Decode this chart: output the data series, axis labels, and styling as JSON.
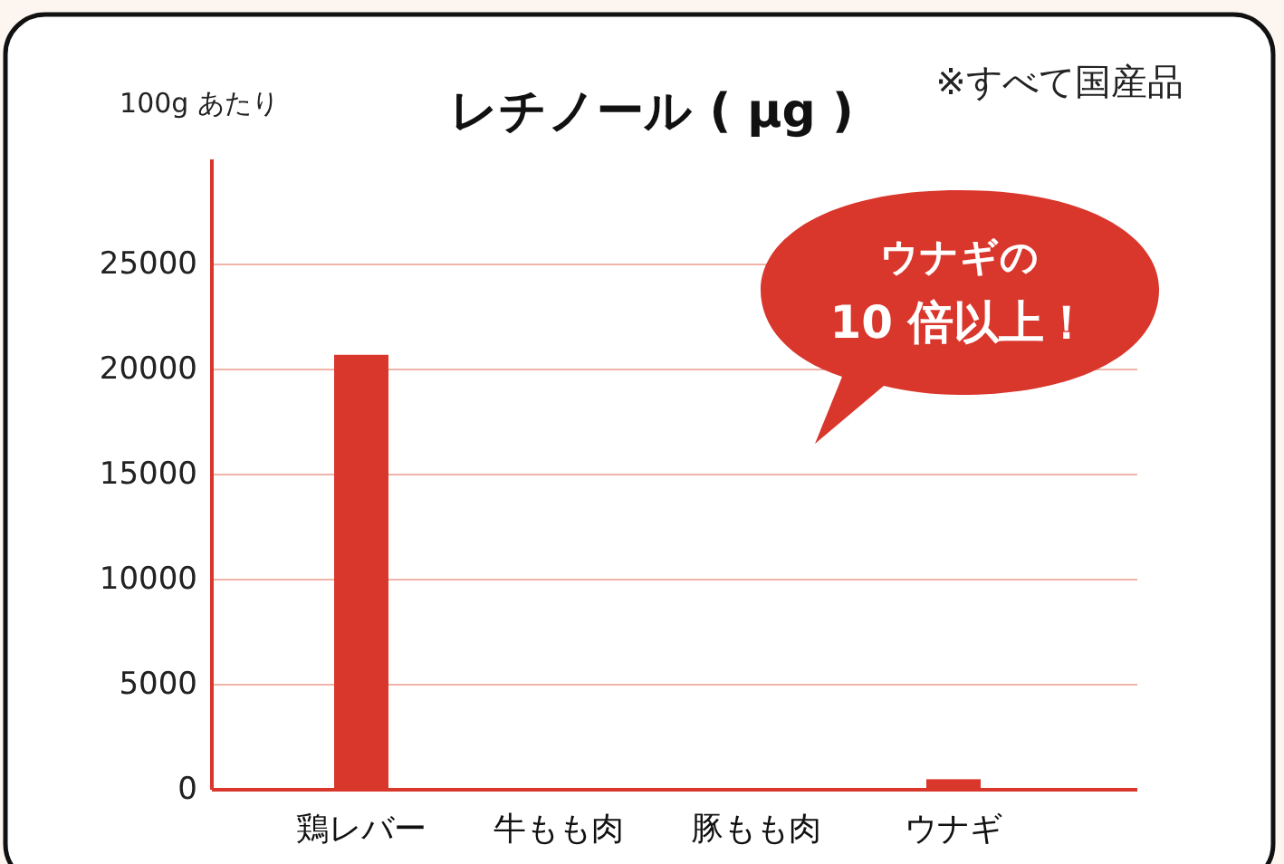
{
  "chart_data": {
    "type": "bar",
    "title": "レチノール ( μg )",
    "ylabel": "100g あたり",
    "categories": [
      "鶏レバー",
      "牛もも肉",
      "豚もも肉",
      "ウナギ"
    ],
    "values": [
      20700,
      0,
      0,
      500
    ],
    "color": "#d9362c",
    "ylim": [
      0,
      30000
    ],
    "yticks": [
      0,
      5000,
      10000,
      15000,
      20000,
      25000
    ],
    "grid": "y",
    "annotations": [
      "※すべて国産品",
      "ウナギの\n10 倍以上！"
    ]
  }
}
